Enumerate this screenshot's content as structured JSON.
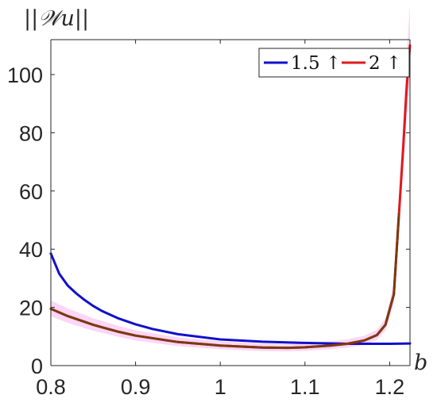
{
  "chart_data": {
    "type": "line",
    "title": "",
    "ylabel": "||𝒲u||",
    "xlabel": "b",
    "xlim": [
      0.8,
      1.224
    ],
    "ylim": [
      0,
      112
    ],
    "xticks": [
      0.8,
      0.9,
      1.0,
      1.1,
      1.2
    ],
    "xtick_labels": [
      "0.8",
      "0.9",
      "1",
      "1.1",
      "1.2"
    ],
    "yticks": [
      0,
      20,
      40,
      60,
      80,
      100
    ],
    "ytick_labels": [
      "0",
      "20",
      "40",
      "60",
      "80",
      "100"
    ],
    "grid": false,
    "legend_position": "top-right",
    "series": [
      {
        "name": "1.5 ↑",
        "color": "#1010cc",
        "points": [
          [
            0.8,
            38.5
          ],
          [
            0.81,
            31.5
          ],
          [
            0.82,
            27.5
          ],
          [
            0.83,
            24.8
          ],
          [
            0.84,
            22.5
          ],
          [
            0.85,
            20.5
          ],
          [
            0.86,
            18.8
          ],
          [
            0.88,
            16.2
          ],
          [
            0.9,
            14.2
          ],
          [
            0.92,
            12.6
          ],
          [
            0.95,
            10.8
          ],
          [
            1.0,
            9.0
          ],
          [
            1.05,
            8.2
          ],
          [
            1.1,
            7.8
          ],
          [
            1.15,
            7.5
          ],
          [
            1.2,
            7.5
          ],
          [
            1.224,
            7.6
          ]
        ]
      },
      {
        "name": "2 ↑",
        "color": "#dd1a1a",
        "points": [
          [
            0.8,
            19.5
          ],
          [
            0.82,
            17.0
          ],
          [
            0.85,
            14.0
          ],
          [
            0.88,
            11.6
          ],
          [
            0.9,
            10.3
          ],
          [
            0.95,
            8.1
          ],
          [
            1.0,
            6.9
          ],
          [
            1.05,
            6.2
          ],
          [
            1.08,
            6.1
          ],
          [
            1.1,
            6.3
          ],
          [
            1.13,
            6.9
          ],
          [
            1.15,
            7.5
          ],
          [
            1.17,
            8.6
          ],
          [
            1.185,
            10.5
          ],
          [
            1.195,
            14.0
          ],
          [
            1.205,
            24.5
          ],
          [
            1.211,
            52.0
          ],
          [
            1.216,
            75.0
          ],
          [
            1.22,
            95.0
          ],
          [
            1.224,
            110.0
          ]
        ]
      }
    ],
    "overlay": {
      "color": "#7a3a10",
      "points": [
        [
          0.8,
          19.5
        ],
        [
          0.82,
          17.0
        ],
        [
          0.85,
          14.0
        ],
        [
          0.88,
          11.6
        ],
        [
          0.9,
          10.3
        ],
        [
          0.95,
          8.1
        ],
        [
          1.0,
          6.9
        ],
        [
          1.05,
          6.2
        ],
        [
          1.08,
          6.1
        ],
        [
          1.1,
          6.3
        ],
        [
          1.13,
          6.9
        ],
        [
          1.15,
          7.5
        ],
        [
          1.17,
          8.6
        ],
        [
          1.185,
          10.5
        ],
        [
          1.195,
          14.0
        ],
        [
          1.205,
          24.5
        ],
        [
          1.211,
          52.0
        ]
      ]
    },
    "shade_color": "#f9c8f4"
  }
}
